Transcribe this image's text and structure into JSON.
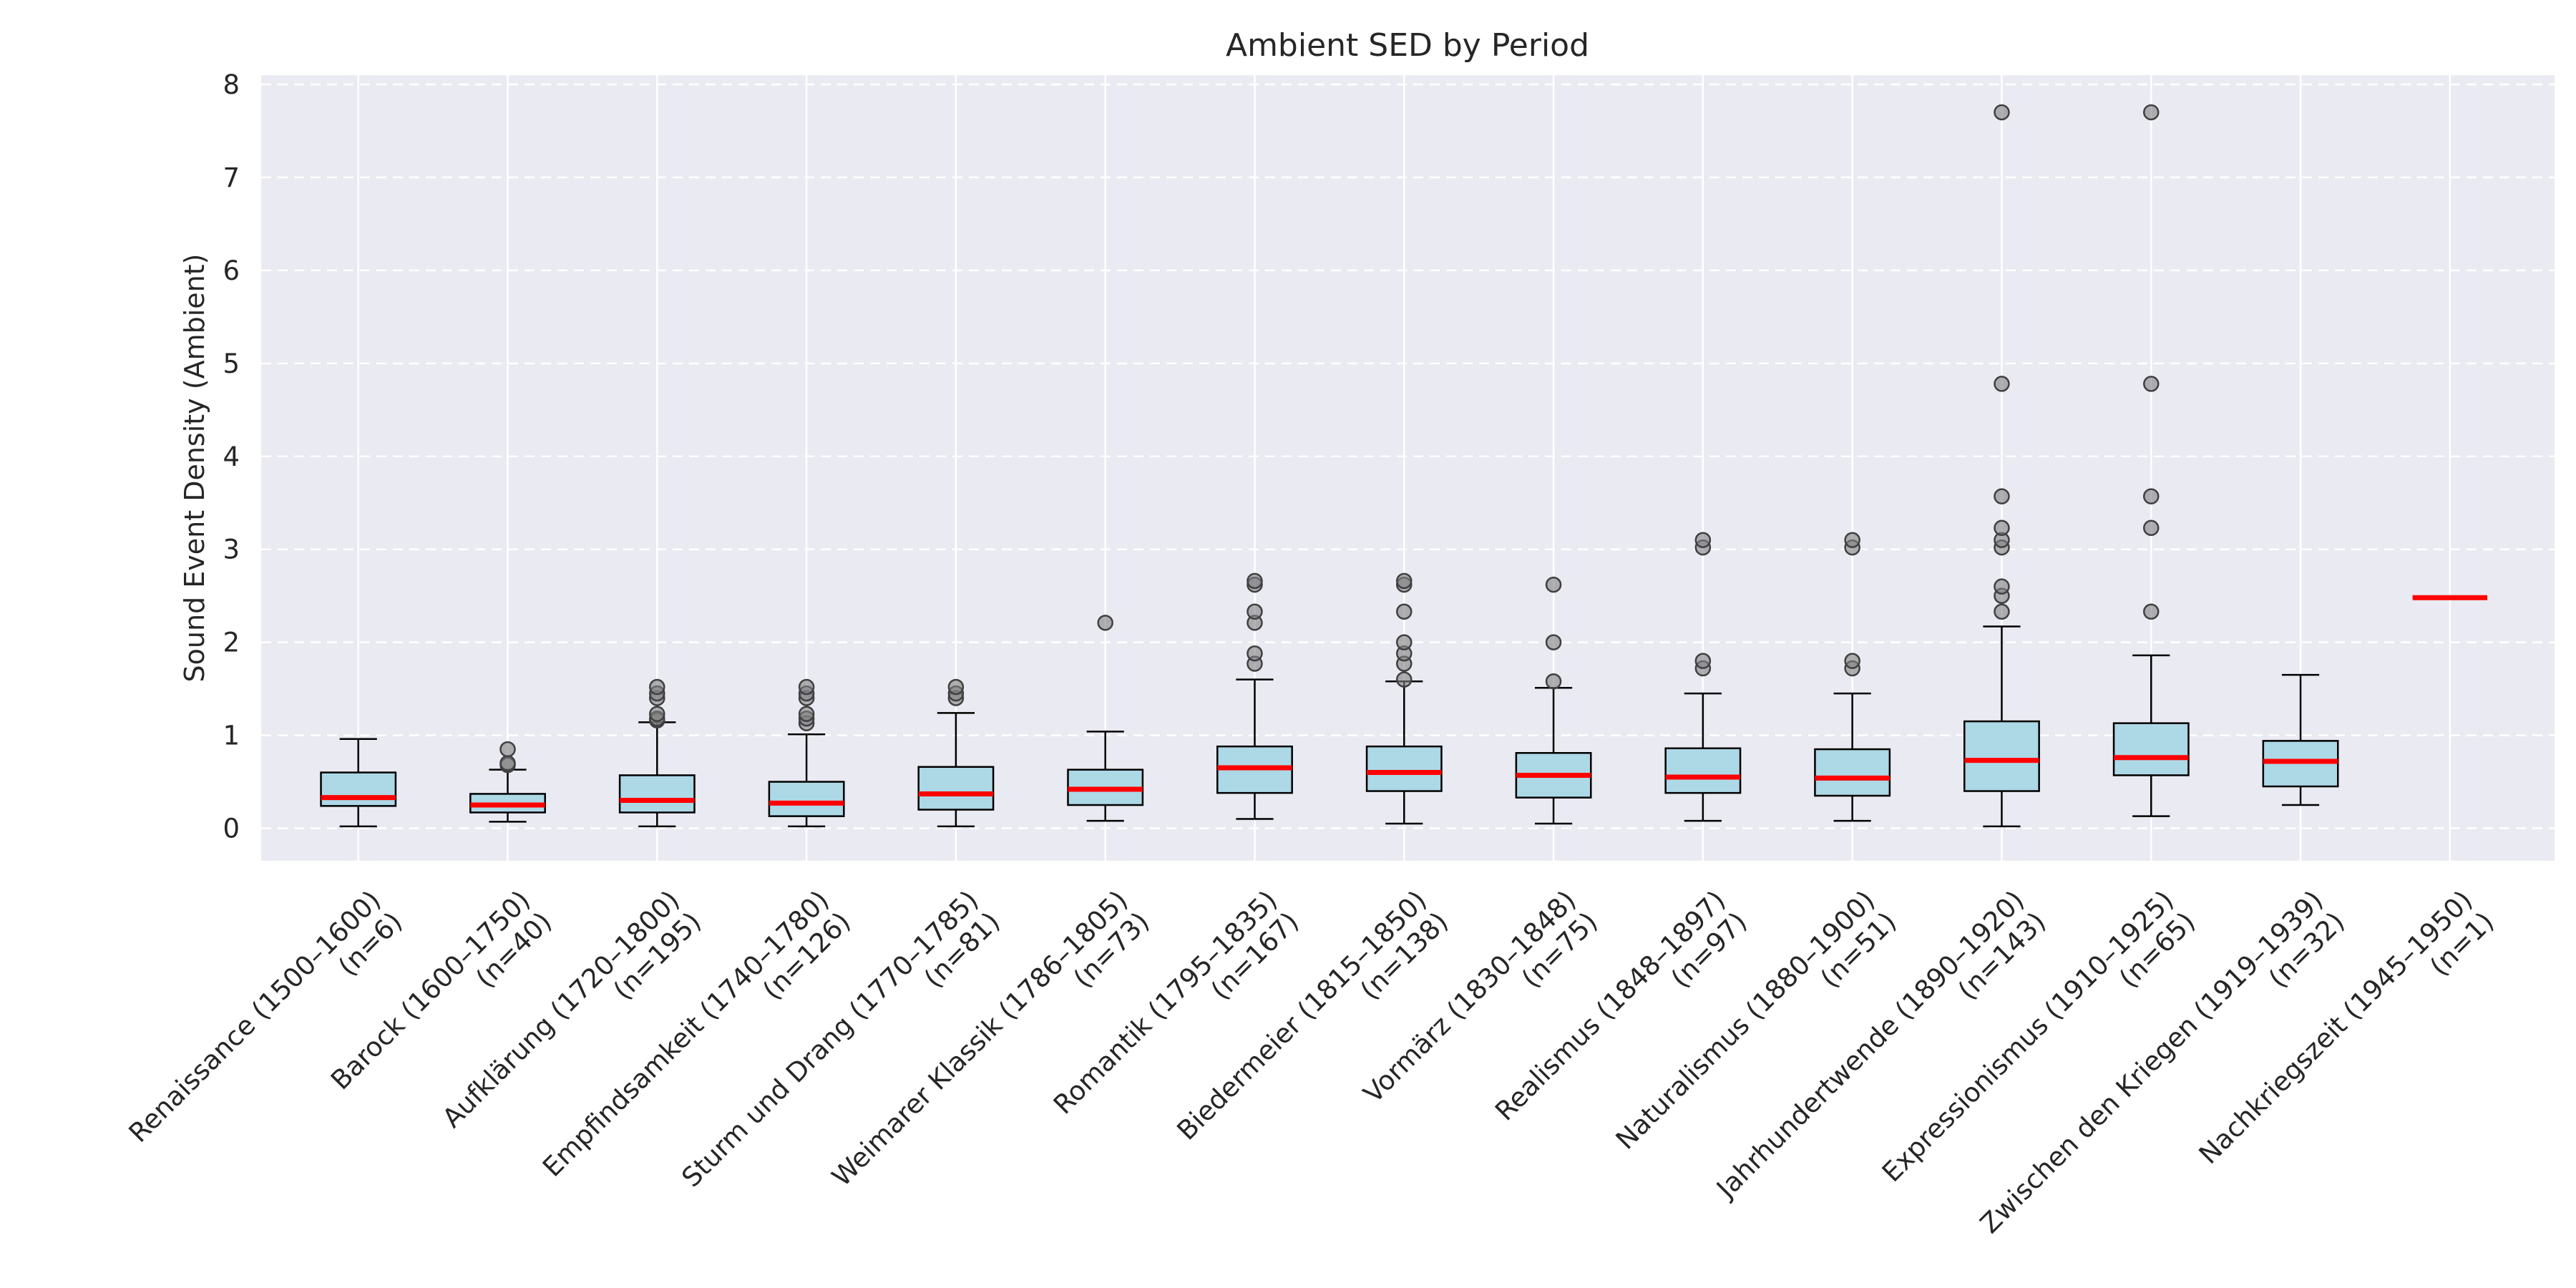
{
  "chart_data": {
    "type": "box",
    "title": "Ambient SED by Period",
    "xlabel": "",
    "ylabel": "Sound Event Density (Ambient)",
    "ylim": [
      -0.35,
      8.1
    ],
    "yticks": [
      0,
      1,
      2,
      3,
      4,
      5,
      6,
      7,
      8
    ],
    "grid": true,
    "colors": {
      "background": "#eaeaf2",
      "box_fill": "#add8e6",
      "median": "#ff0000",
      "outlier": "#808080"
    },
    "categories": [
      "Renaissance (1500–1600)\n(n=6)",
      "Barock (1600–1750)\n(n=40)",
      "Aufklärung (1720–1800)\n(n=195)",
      "Empfindsamkeit (1740–1780)\n(n=126)",
      "Sturm und Drang (1770–1785)\n(n=81)",
      "Weimarer Klassik (1786–1805)\n(n=73)",
      "Romantik (1795–1835)\n(n=167)",
      "Biedermeier (1815–1850)\n(n=138)",
      "Vormärz (1830–1848)\n(n=75)",
      "Realismus (1848–1897)\n(n=97)",
      "Naturalismus (1880–1900)\n(n=51)",
      "Jahrhundertwende (1890–1920)\n(n=143)",
      "Expressionismus (1910–1925)\n(n=65)",
      "Zwischen den Kriegen (1919–1939)\n(n=32)",
      "Nachkriegszeit (1945–1950)\n(n=1)"
    ],
    "boxes": [
      {
        "whislo": 0.02,
        "q1": 0.24,
        "med": 0.33,
        "q3": 0.6,
        "whishi": 0.96,
        "fliers": []
      },
      {
        "whislo": 0.07,
        "q1": 0.17,
        "med": 0.25,
        "q3": 0.37,
        "whishi": 0.63,
        "fliers": [
          0.68,
          0.7,
          0.85
        ]
      },
      {
        "whislo": 0.02,
        "q1": 0.17,
        "med": 0.3,
        "q3": 0.57,
        "whishi": 1.14,
        "fliers": [
          1.16,
          1.18,
          1.23,
          1.4,
          1.45,
          1.52
        ]
      },
      {
        "whislo": 0.02,
        "q1": 0.13,
        "med": 0.27,
        "q3": 0.5,
        "whishi": 1.01,
        "fliers": [
          1.13,
          1.18,
          1.23,
          1.4,
          1.45,
          1.52
        ]
      },
      {
        "whislo": 0.02,
        "q1": 0.2,
        "med": 0.37,
        "q3": 0.66,
        "whishi": 1.24,
        "fliers": [
          1.4,
          1.45,
          1.52
        ]
      },
      {
        "whislo": 0.08,
        "q1": 0.25,
        "med": 0.42,
        "q3": 0.63,
        "whishi": 1.04,
        "fliers": [
          2.21
        ]
      },
      {
        "whislo": 0.1,
        "q1": 0.38,
        "med": 0.65,
        "q3": 0.88,
        "whishi": 1.6,
        "fliers": [
          1.77,
          1.88,
          2.21,
          2.33,
          2.62,
          2.66
        ]
      },
      {
        "whislo": 0.05,
        "q1": 0.4,
        "med": 0.6,
        "q3": 0.88,
        "whishi": 1.58,
        "fliers": [
          1.6,
          1.77,
          1.88,
          2.0,
          2.33,
          2.62,
          2.66
        ]
      },
      {
        "whislo": 0.05,
        "q1": 0.33,
        "med": 0.57,
        "q3": 0.81,
        "whishi": 1.51,
        "fliers": [
          1.58,
          2.0,
          2.62
        ]
      },
      {
        "whislo": 0.08,
        "q1": 0.38,
        "med": 0.55,
        "q3": 0.86,
        "whishi": 1.45,
        "fliers": [
          1.72,
          1.8,
          3.02,
          3.1
        ]
      },
      {
        "whislo": 0.08,
        "q1": 0.35,
        "med": 0.54,
        "q3": 0.85,
        "whishi": 1.45,
        "fliers": [
          1.72,
          1.8,
          3.02,
          3.1
        ]
      },
      {
        "whislo": 0.02,
        "q1": 0.4,
        "med": 0.73,
        "q3": 1.15,
        "whishi": 2.17,
        "fliers": [
          2.33,
          2.5,
          2.6,
          3.02,
          3.1,
          3.23,
          3.57,
          4.78,
          7.7
        ]
      },
      {
        "whislo": 0.13,
        "q1": 0.57,
        "med": 0.76,
        "q3": 1.13,
        "whishi": 1.86,
        "fliers": [
          2.33,
          3.23,
          3.57,
          4.78,
          7.7
        ]
      },
      {
        "whislo": 0.25,
        "q1": 0.45,
        "med": 0.72,
        "q3": 0.94,
        "whishi": 1.65,
        "fliers": []
      },
      {
        "whislo": 2.48,
        "q1": 2.48,
        "med": 2.48,
        "q3": 2.48,
        "whishi": 2.48,
        "fliers": []
      }
    ]
  }
}
